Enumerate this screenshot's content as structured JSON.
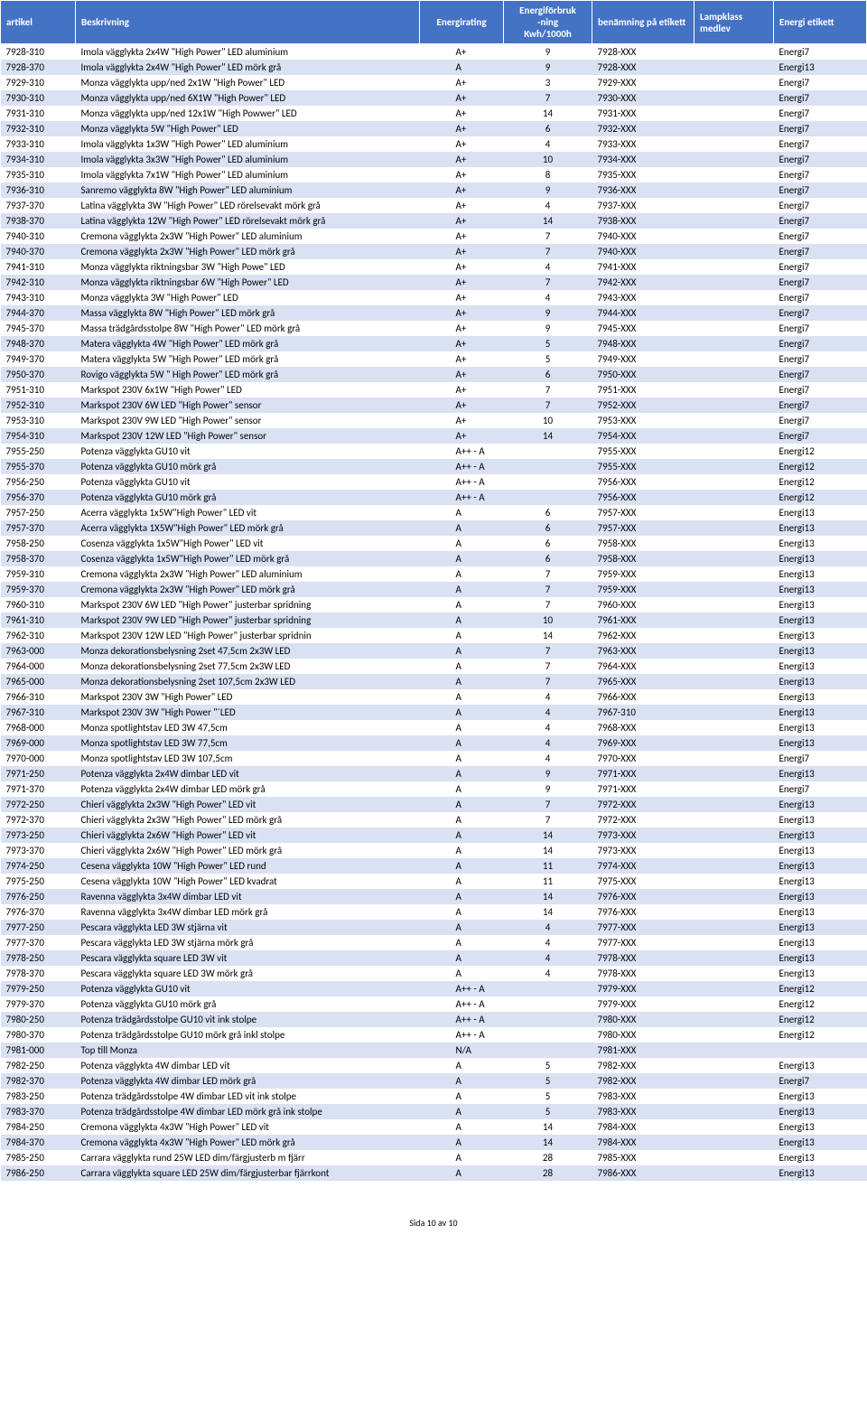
{
  "table": {
    "headers": {
      "artikel": "artikel",
      "beskrivning": "Beskrivning",
      "energirating": "Energirating",
      "forbrukning": "Energiförbruk\n-ning\nKwh/1000h",
      "benamning": "benämning på etikett",
      "lampklass": "Lampklass medlev",
      "etikett": "Energi etikett"
    },
    "rows": [
      {
        "artikel": "7928-310",
        "beskrivning": "Imola vägglykta 2x4W \"High Power\" LED aluminium",
        "rating": "A+",
        "forbruk": "9",
        "benamning": "7928-XXX",
        "lampklass": "",
        "etikett": "Energi7"
      },
      {
        "artikel": "7928-370",
        "beskrivning": "Imola vägglykta 2x4W \"High Power\" LED mörk grå",
        "rating": "A",
        "forbruk": "9",
        "benamning": "7928-XXX",
        "lampklass": "",
        "etikett": "Energi13"
      },
      {
        "artikel": "7929-310",
        "beskrivning": "Monza vägglykta upp/ned 2x1W \"High Power\" LED",
        "rating": "A+",
        "forbruk": "3",
        "benamning": "7929-XXX",
        "lampklass": "",
        "etikett": "Energi7"
      },
      {
        "artikel": "7930-310",
        "beskrivning": "Monza vägglykta upp/ned 6X1W \"High Power\" LED",
        "rating": "A+",
        "forbruk": "7",
        "benamning": "7930-XXX",
        "lampklass": "",
        "etikett": "Energi7"
      },
      {
        "artikel": "7931-310",
        "beskrivning": "Monza vägglykta upp/ned 12x1W \"High Powwer\" LED",
        "rating": "A+",
        "forbruk": "14",
        "benamning": "7931-XXX",
        "lampklass": "",
        "etikett": "Energi7"
      },
      {
        "artikel": "7932-310",
        "beskrivning": "Monza vägglykta 5W \"High Power\" LED",
        "rating": "A+",
        "forbruk": "6",
        "benamning": "7932-XXX",
        "lampklass": "",
        "etikett": "Energi7"
      },
      {
        "artikel": "7933-310",
        "beskrivning": "Imola vägglykta 1x3W \"High Power\" LED aluminium",
        "rating": "A+",
        "forbruk": "4",
        "benamning": "7933-XXX",
        "lampklass": "",
        "etikett": "Energi7"
      },
      {
        "artikel": "7934-310",
        "beskrivning": "Imola vägglykta 3x3W \"High Power\" LED aluminium",
        "rating": "A+",
        "forbruk": "10",
        "benamning": "7934-XXX",
        "lampklass": "",
        "etikett": "Energi7"
      },
      {
        "artikel": "7935-310",
        "beskrivning": "Imola vägglykta 7x1W \"High Power\" LED aluminium",
        "rating": "A+",
        "forbruk": "8",
        "benamning": "7935-XXX",
        "lampklass": "",
        "etikett": "Energi7"
      },
      {
        "artikel": "7936-310",
        "beskrivning": "Sanremo vägglykta 8W \"High Power\" LED aluminium",
        "rating": "A+",
        "forbruk": "9",
        "benamning": "7936-XXX",
        "lampklass": "",
        "etikett": "Energi7"
      },
      {
        "artikel": "7937-370",
        "beskrivning": "Latina vägglykta 3W \"High Power\" LED rörelsevakt mörk grå",
        "rating": "A+",
        "forbruk": "4",
        "benamning": "7937-XXX",
        "lampklass": "",
        "etikett": "Energi7"
      },
      {
        "artikel": "7938-370",
        "beskrivning": "Latina vägglykta 12W \"High Power\" LED rörelsevakt mörk grå",
        "rating": "A+",
        "forbruk": "14",
        "benamning": "7938-XXX",
        "lampklass": "",
        "etikett": "Energi7"
      },
      {
        "artikel": "7940-310",
        "beskrivning": "Cremona vägglykta 2x3W \"High Power\" LED aluminium",
        "rating": "A+",
        "forbruk": "7",
        "benamning": "7940-XXX",
        "lampklass": "",
        "etikett": "Energi7"
      },
      {
        "artikel": "7940-370",
        "beskrivning": "Cremona vägglykta 2x3W \"High Power\" LED mörk grå",
        "rating": "A+",
        "forbruk": "7",
        "benamning": "7940-XXX",
        "lampklass": "",
        "etikett": "Energi7"
      },
      {
        "artikel": "7941-310",
        "beskrivning": "Monza vägglykta riktningsbar 3W \"High Powe\" LED",
        "rating": "A+",
        "forbruk": "4",
        "benamning": "7941-XXX",
        "lampklass": "",
        "etikett": "Energi7"
      },
      {
        "artikel": "7942-310",
        "beskrivning": "Monza vägglykta riktningsbar 6W \"High Power\" LED",
        "rating": "A+",
        "forbruk": "7",
        "benamning": "7942-XXX",
        "lampklass": "",
        "etikett": "Energi7"
      },
      {
        "artikel": "7943-310",
        "beskrivning": "Monza vägglykta 3W \"High Power\" LED",
        "rating": "A+",
        "forbruk": "4",
        "benamning": "7943-XXX",
        "lampklass": "",
        "etikett": "Energi7"
      },
      {
        "artikel": "7944-370",
        "beskrivning": "Massa vägglykta 8W \"High Power\" LED mörk grå",
        "rating": "A+",
        "forbruk": "9",
        "benamning": "7944-XXX",
        "lampklass": "",
        "etikett": "Energi7"
      },
      {
        "artikel": "7945-370",
        "beskrivning": "Massa trädgårdsstolpe 8W \"High Power\" LED mörk grå",
        "rating": "A+",
        "forbruk": "9",
        "benamning": "7945-XXX",
        "lampklass": "",
        "etikett": "Energi7"
      },
      {
        "artikel": "7948-370",
        "beskrivning": "Matera vägglykta 4W \"High Power\" LED mörk grå",
        "rating": "A+",
        "forbruk": "5",
        "benamning": "7948-XXX",
        "lampklass": "",
        "etikett": "Energi7"
      },
      {
        "artikel": "7949-370",
        "beskrivning": "Matera vägglykta 5W \"High Power\" LED mörk grå",
        "rating": "A+",
        "forbruk": "5",
        "benamning": "7949-XXX",
        "lampklass": "",
        "etikett": "Energi7"
      },
      {
        "artikel": "7950-370",
        "beskrivning": "Rovigo vägglykta 5W \" High Power\" LED mörk grå",
        "rating": "A+",
        "forbruk": "6",
        "benamning": "7950-XXX",
        "lampklass": "",
        "etikett": "Energi7"
      },
      {
        "artikel": "7951-310",
        "beskrivning": "Markspot 230V 6x1W \"High Power\" LED",
        "rating": "A+",
        "forbruk": "7",
        "benamning": "7951-XXX",
        "lampklass": "",
        "etikett": "Energi7"
      },
      {
        "artikel": "7952-310",
        "beskrivning": "Markspot 230V 6W LED \"High Power\" sensor",
        "rating": "A+",
        "forbruk": "7",
        "benamning": "7952-XXX",
        "lampklass": "",
        "etikett": "Energi7"
      },
      {
        "artikel": "7953-310",
        "beskrivning": "Markspot 230V 9W LED \"High Power\" sensor",
        "rating": "A+",
        "forbruk": "10",
        "benamning": "7953-XXX",
        "lampklass": "",
        "etikett": "Energi7"
      },
      {
        "artikel": "7954-310",
        "beskrivning": "Markspot 230V 12W LED \"High Power\" sensor",
        "rating": "A+",
        "forbruk": "14",
        "benamning": "7954-XXX",
        "lampklass": "",
        "etikett": "Energi7"
      },
      {
        "artikel": "7955-250",
        "beskrivning": "Potenza vägglykta GU10 vit",
        "rating": "A++ - A",
        "forbruk": "",
        "benamning": "7955-XXX",
        "lampklass": "",
        "etikett": "Energi12"
      },
      {
        "artikel": "7955-370",
        "beskrivning": "Potenza vägglykta GU10 mörk grå",
        "rating": "A++ - A",
        "forbruk": "",
        "benamning": "7955-XXX",
        "lampklass": "",
        "etikett": "Energi12"
      },
      {
        "artikel": "7956-250",
        "beskrivning": "Potenza vägglykta GU10 vit",
        "rating": "A++ - A",
        "forbruk": "",
        "benamning": "7956-XXX",
        "lampklass": "",
        "etikett": "Energi12"
      },
      {
        "artikel": "7956-370",
        "beskrivning": "Potenza vägglykta GU10 mörk grå",
        "rating": "A++ - A",
        "forbruk": "",
        "benamning": "7956-XXX",
        "lampklass": "",
        "etikett": "Energi12"
      },
      {
        "artikel": "7957-250",
        "beskrivning": "Acerra vägglykta 1x5W\"High Power\" LED vit",
        "rating": "A",
        "forbruk": "6",
        "benamning": "7957-XXX",
        "lampklass": "",
        "etikett": "Energi13"
      },
      {
        "artikel": "7957-370",
        "beskrivning": "Acerra vägglykta 1X5W\"High Power\" LED mörk grå",
        "rating": "A",
        "forbruk": "6",
        "benamning": "7957-XXX",
        "lampklass": "",
        "etikett": "Energi13"
      },
      {
        "artikel": "7958-250",
        "beskrivning": "Cosenza vägglykta 1x5W\"High Power\" LED vit",
        "rating": "A",
        "forbruk": "6",
        "benamning": "7958-XXX",
        "lampklass": "",
        "etikett": "Energi13"
      },
      {
        "artikel": "7958-370",
        "beskrivning": "Cosenza vägglykta 1x5W\"High Power\" LED mörk grå",
        "rating": "A",
        "forbruk": "6",
        "benamning": "7958-XXX",
        "lampklass": "",
        "etikett": "Energi13"
      },
      {
        "artikel": "7959-310",
        "beskrivning": "Cremona vägglykta 2x3W \"High Power\" LED aluminium",
        "rating": "A",
        "forbruk": "7",
        "benamning": "7959-XXX",
        "lampklass": "",
        "etikett": "Energi13"
      },
      {
        "artikel": "7959-370",
        "beskrivning": "Cremona vägglykta 2x3W \"High Power\" LED mörk grå",
        "rating": "A",
        "forbruk": "7",
        "benamning": "7959-XXX",
        "lampklass": "",
        "etikett": "Energi13"
      },
      {
        "artikel": "7960-310",
        "beskrivning": "Markspot 230V 6W LED \"High Power\" justerbar spridning",
        "rating": "A",
        "forbruk": "7",
        "benamning": "7960-XXX",
        "lampklass": "",
        "etikett": "Energi13"
      },
      {
        "artikel": "7961-310",
        "beskrivning": "Markspot 230V 9W LED \"High Power\" justerbar spridning",
        "rating": "A",
        "forbruk": "10",
        "benamning": "7961-XXX",
        "lampklass": "",
        "etikett": "Energi13"
      },
      {
        "artikel": "7962-310",
        "beskrivning": "Markspot 230V 12W LED \"High Power\" justerbar spridnin",
        "rating": "A",
        "forbruk": "14",
        "benamning": "7962-XXX",
        "lampklass": "",
        "etikett": "Energi13"
      },
      {
        "artikel": "7963-000",
        "beskrivning": "Monza dekorationsbelysning 2set 47,5cm 2x3W LED",
        "rating": "A",
        "forbruk": "7",
        "benamning": "7963-XXX",
        "lampklass": "",
        "etikett": "Energi13"
      },
      {
        "artikel": "7964-000",
        "beskrivning": "Monza dekorationsbelysning 2set 77,5cm 2x3W LED",
        "rating": "A",
        "forbruk": "7",
        "benamning": "7964-XXX",
        "lampklass": "",
        "etikett": "Energi13"
      },
      {
        "artikel": "7965-000",
        "beskrivning": "Monza dekorationsbelysning 2set 107,5cm 2x3W LED",
        "rating": "A",
        "forbruk": "7",
        "benamning": "7965-XXX",
        "lampklass": "",
        "etikett": "Energi13"
      },
      {
        "artikel": "7966-310",
        "beskrivning": "Markspot 230V 3W \"High Power\" LED",
        "rating": "A",
        "forbruk": "4",
        "benamning": "7966-XXX",
        "lampklass": "",
        "etikett": "Energi13"
      },
      {
        "artikel": "7967-310",
        "beskrivning": "Markspot 230V 3W \"High Power \"´LED",
        "rating": "A",
        "forbruk": "4",
        "benamning": "7967-310",
        "lampklass": "",
        "etikett": "Energi13"
      },
      {
        "artikel": "7968-000",
        "beskrivning": "Monza spotlightstav LED 3W 47,5cm",
        "rating": "A",
        "forbruk": "4",
        "benamning": "7968-XXX",
        "lampklass": "",
        "etikett": "Energi13"
      },
      {
        "artikel": "7969-000",
        "beskrivning": "Monza spotlightstav LED 3W 77,5cm",
        "rating": "A",
        "forbruk": "4",
        "benamning": "7969-XXX",
        "lampklass": "",
        "etikett": "Energi13"
      },
      {
        "artikel": "7970-000",
        "beskrivning": "Monza spotlightstav LED 3W 107,5cm",
        "rating": "A",
        "forbruk": "4",
        "benamning": "7970-XXX",
        "lampklass": "",
        "etikett": "Energi7"
      },
      {
        "artikel": "7971-250",
        "beskrivning": "Potenza vägglykta 2x4W dimbar LED vit",
        "rating": "A",
        "forbruk": "9",
        "benamning": "7971-XXX",
        "lampklass": "",
        "etikett": "Energi13"
      },
      {
        "artikel": "7971-370",
        "beskrivning": "Potenza vägglykta 2x4W dimbar LED mörk grå",
        "rating": "A",
        "forbruk": "9",
        "benamning": "7971-XXX",
        "lampklass": "",
        "etikett": "Energi7"
      },
      {
        "artikel": "7972-250",
        "beskrivning": "Chieri vägglykta 2x3W \"High Power\" LED vit",
        "rating": "A",
        "forbruk": "7",
        "benamning": "7972-XXX",
        "lampklass": "",
        "etikett": "Energi13"
      },
      {
        "artikel": "7972-370",
        "beskrivning": "Chieri vägglykta 2x3W \"High Power\" LED mörk grå",
        "rating": "A",
        "forbruk": "7",
        "benamning": "7972-XXX",
        "lampklass": "",
        "etikett": "Energi13"
      },
      {
        "artikel": "7973-250",
        "beskrivning": "Chieri vägglykta 2x6W \"High Power\" LED vit",
        "rating": "A",
        "forbruk": "14",
        "benamning": "7973-XXX",
        "lampklass": "",
        "etikett": "Energi13"
      },
      {
        "artikel": "7973-370",
        "beskrivning": "Chieri vägglykta 2x6W \"High Power\" LED mörk grå",
        "rating": "A",
        "forbruk": "14",
        "benamning": "7973-XXX",
        "lampklass": "",
        "etikett": "Energi13"
      },
      {
        "artikel": "7974-250",
        "beskrivning": "Cesena vägglykta 10W \"High Power\" LED rund",
        "rating": "A",
        "forbruk": "11",
        "benamning": "7974-XXX",
        "lampklass": "",
        "etikett": "Energi13"
      },
      {
        "artikel": "7975-250",
        "beskrivning": "Cesena vägglykta 10W \"High Power\" LED kvadrat",
        "rating": "A",
        "forbruk": "11",
        "benamning": "7975-XXX",
        "lampklass": "",
        "etikett": "Energi13"
      },
      {
        "artikel": "7976-250",
        "beskrivning": "Ravenna vägglykta 3x4W dimbar LED vit",
        "rating": "A",
        "forbruk": "14",
        "benamning": "7976-XXX",
        "lampklass": "",
        "etikett": "Energi13"
      },
      {
        "artikel": "7976-370",
        "beskrivning": "Ravenna vägglykta 3x4W dimbar LED mörk grå",
        "rating": "A",
        "forbruk": "14",
        "benamning": "7976-XXX",
        "lampklass": "",
        "etikett": "Energi13"
      },
      {
        "artikel": "7977-250",
        "beskrivning": "Pescara vägglykta LED 3W stjärna vit",
        "rating": "A",
        "forbruk": "4",
        "benamning": "7977-XXX",
        "lampklass": "",
        "etikett": "Energi13"
      },
      {
        "artikel": "7977-370",
        "beskrivning": "Pescara vägglykta LED 3W stjärna mörk grå",
        "rating": "A",
        "forbruk": "4",
        "benamning": "7977-XXX",
        "lampklass": "",
        "etikett": "Energi13"
      },
      {
        "artikel": "7978-250",
        "beskrivning": "Pescara vägglykta square LED 3W vit",
        "rating": "A",
        "forbruk": "4",
        "benamning": "7978-XXX",
        "lampklass": "",
        "etikett": "Energi13"
      },
      {
        "artikel": "7978-370",
        "beskrivning": "Pescara vägglykta square LED 3W mörk grå",
        "rating": "A",
        "forbruk": "4",
        "benamning": "7978-XXX",
        "lampklass": "",
        "etikett": "Energi13"
      },
      {
        "artikel": "7979-250",
        "beskrivning": "Potenza vägglykta GU10 vit",
        "rating": "A++ - A",
        "forbruk": "",
        "benamning": "7979-XXX",
        "lampklass": "",
        "etikett": "Energi12"
      },
      {
        "artikel": "7979-370",
        "beskrivning": "Potenza vägglykta GU10 mörk grå",
        "rating": "A++ - A",
        "forbruk": "",
        "benamning": "7979-XXX",
        "lampklass": "",
        "etikett": "Energi12"
      },
      {
        "artikel": "7980-250",
        "beskrivning": "Potenza trädgårdsstolpe GU10 vit ink stolpe",
        "rating": "A++ - A",
        "forbruk": "",
        "benamning": "7980-XXX",
        "lampklass": "",
        "etikett": "Energi12"
      },
      {
        "artikel": "7980-370",
        "beskrivning": "Potenza trädgårdsstolpe GU10 mörk grå inkl stolpe",
        "rating": "A++ - A",
        "forbruk": "",
        "benamning": "7980-XXX",
        "lampklass": "",
        "etikett": "Energi12"
      },
      {
        "artikel": "7981-000",
        "beskrivning": "Top till Monza",
        "rating": "N/A",
        "forbruk": "",
        "benamning": "7981-XXX",
        "lampklass": "",
        "etikett": ""
      },
      {
        "artikel": "7982-250",
        "beskrivning": "Potenza vägglykta 4W dimbar LED vit",
        "rating": "A",
        "forbruk": "5",
        "benamning": "7982-XXX",
        "lampklass": "",
        "etikett": "Energi13"
      },
      {
        "artikel": "7982-370",
        "beskrivning": "Potenza vägglykta 4W dimbar LED mörk grå",
        "rating": "A",
        "forbruk": "5",
        "benamning": "7982-XXX",
        "lampklass": "",
        "etikett": "Energi7"
      },
      {
        "artikel": "7983-250",
        "beskrivning": "Potenza trädgårdsstolpe 4W dimbar LED vit ink stolpe",
        "rating": "A",
        "forbruk": "5",
        "benamning": "7983-XXX",
        "lampklass": "",
        "etikett": "Energi13"
      },
      {
        "artikel": "7983-370",
        "beskrivning": "Potenza trädgårdsstolpe 4W dimbar LED mörk grå ink stolpe",
        "rating": "A",
        "forbruk": "5",
        "benamning": "7983-XXX",
        "lampklass": "",
        "etikett": "Energi13"
      },
      {
        "artikel": "7984-250",
        "beskrivning": "Cremona vägglykta 4x3W \"High Power\" LED vit",
        "rating": "A",
        "forbruk": "14",
        "benamning": "7984-XXX",
        "lampklass": "",
        "etikett": "Energi13"
      },
      {
        "artikel": "7984-370",
        "beskrivning": "Cremona vägglykta 4x3W \"High Power\" LED mörk grå",
        "rating": "A",
        "forbruk": "14",
        "benamning": "7984-XXX",
        "lampklass": "",
        "etikett": "Energi13"
      },
      {
        "artikel": "7985-250",
        "beskrivning": "Carrara vägglykta rund  25W LED dim/färgjusterb m fjärr",
        "rating": "A",
        "forbruk": "28",
        "benamning": "7985-XXX",
        "lampklass": "",
        "etikett": "Energi13"
      },
      {
        "artikel": "7986-250",
        "beskrivning": "Carrara vägglykta square LED 25W dim/färgjusterbar fjärrkont",
        "rating": "A",
        "forbruk": "28",
        "benamning": "7986-XXX",
        "lampklass": "",
        "etikett": "Energi13"
      }
    ]
  },
  "footer": "Sida 10 av 10"
}
